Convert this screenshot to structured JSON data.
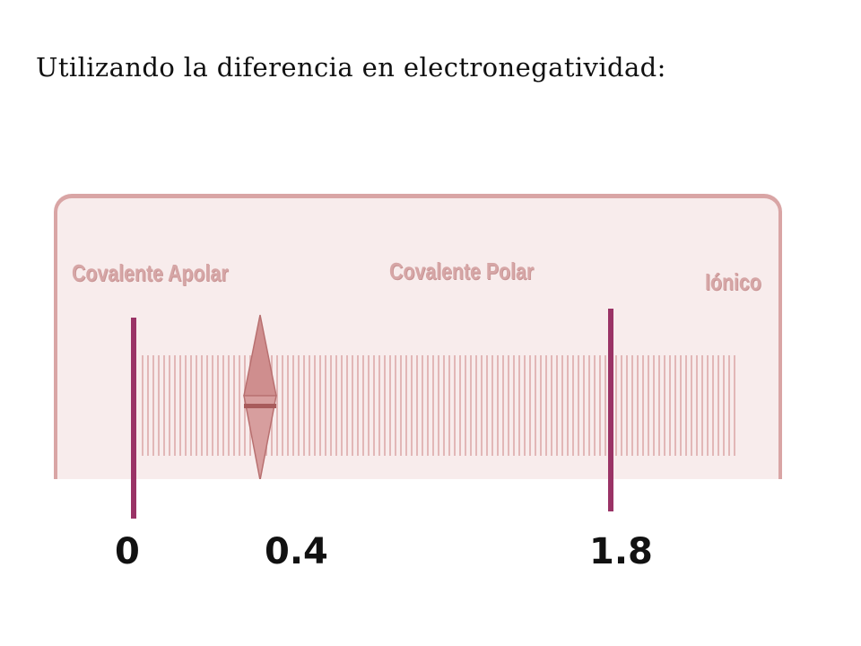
{
  "heading": "Utilizando la diferencia en electronegatividad:",
  "scale": {
    "regions": {
      "apolar": "Covalente Apolar",
      "polar": "Covalente Polar",
      "ionico": "Iónico"
    },
    "slider": {
      "level": 0.2
    },
    "colors": {
      "panel_background": "#f8ecec",
      "panel_border": "#d9a5a5",
      "label_text": "#d6a6a6",
      "slider_fill": "#c98585",
      "marker": "#9a3366"
    }
  },
  "values": {
    "zero": "0",
    "threshold_polar": "0.4",
    "threshold_ionic": "1.8"
  }
}
